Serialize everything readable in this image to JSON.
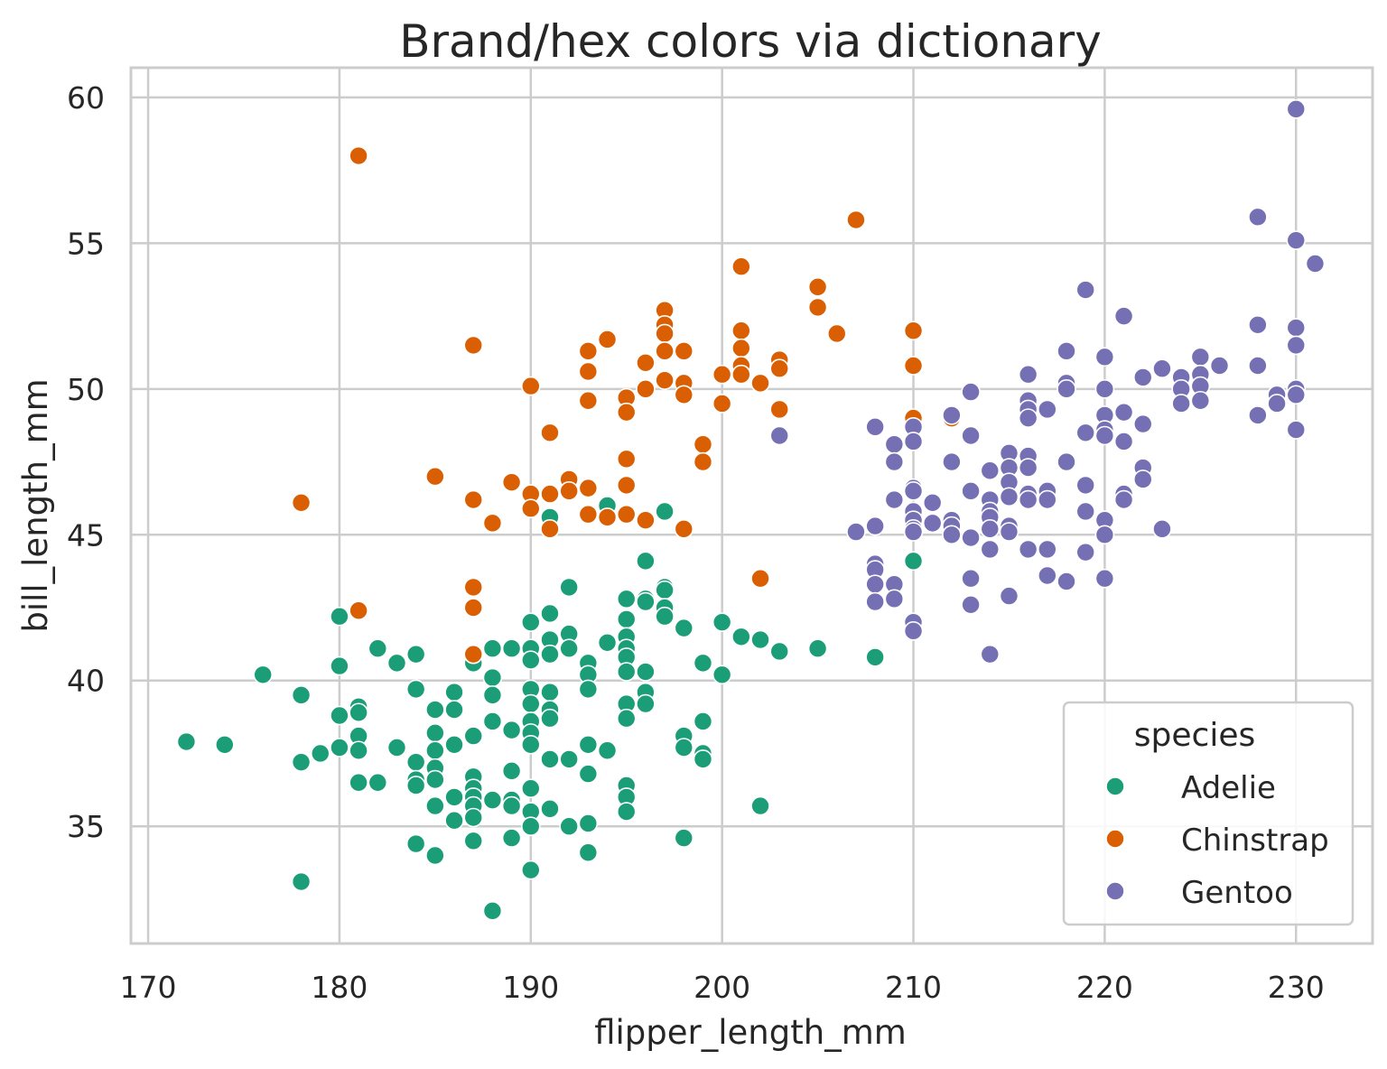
{
  "chart_data": {
    "type": "scatter",
    "title": "Brand/hex colors via dictionary",
    "xlabel": "flipper_length_mm",
    "ylabel": "bill_length_mm",
    "xlim": [
      169.1,
      234
    ],
    "ylim": [
      30.98,
      61.02
    ],
    "xticks": [
      170,
      180,
      190,
      200,
      210,
      220,
      230
    ],
    "yticks": [
      35,
      40,
      45,
      50,
      55,
      60
    ],
    "grid": true,
    "legend": {
      "title": "species",
      "placement": "bottom-right"
    },
    "series": [
      {
        "name": "Adelie",
        "color": "#1b9e77",
        "points": [
          [
            172,
            37.9
          ],
          [
            174,
            37.8
          ],
          [
            176,
            40.2
          ],
          [
            178,
            39.5
          ],
          [
            178,
            37.2
          ],
          [
            178,
            33.1
          ],
          [
            179,
            37.5
          ],
          [
            180,
            42.2
          ],
          [
            180,
            40.5
          ],
          [
            180,
            38.8
          ],
          [
            180,
            37.7
          ],
          [
            181,
            39.1
          ],
          [
            181,
            38.9
          ],
          [
            181,
            38.1
          ],
          [
            181,
            37.6
          ],
          [
            181,
            36.5
          ],
          [
            182,
            41.1
          ],
          [
            182,
            36.5
          ],
          [
            183,
            40.6
          ],
          [
            183,
            37.7
          ],
          [
            184,
            40.9
          ],
          [
            184,
            39.7
          ],
          [
            184,
            37.2
          ],
          [
            184,
            36.6
          ],
          [
            184,
            36.4
          ],
          [
            184,
            34.4
          ],
          [
            185,
            39.0
          ],
          [
            185,
            38.2
          ],
          [
            185,
            37.6
          ],
          [
            185,
            37.0
          ],
          [
            185,
            36.6
          ],
          [
            185,
            35.7
          ],
          [
            185,
            34.0
          ],
          [
            186,
            39.6
          ],
          [
            186,
            39.0
          ],
          [
            186,
            37.8
          ],
          [
            186,
            36.0
          ],
          [
            186,
            35.2
          ],
          [
            187,
            40.6
          ],
          [
            187,
            38.1
          ],
          [
            187,
            36.7
          ],
          [
            187,
            36.3
          ],
          [
            187,
            36.0
          ],
          [
            187,
            35.7
          ],
          [
            187,
            35.3
          ],
          [
            187,
            34.5
          ],
          [
            188,
            41.1
          ],
          [
            188,
            40.1
          ],
          [
            188,
            39.5
          ],
          [
            188,
            38.6
          ],
          [
            188,
            35.9
          ],
          [
            188,
            32.1
          ],
          [
            189,
            41.1
          ],
          [
            189,
            38.3
          ],
          [
            189,
            36.9
          ],
          [
            189,
            35.9
          ],
          [
            189,
            35.7
          ],
          [
            189,
            34.6
          ],
          [
            190,
            42.0
          ],
          [
            190,
            41.1
          ],
          [
            190,
            40.7
          ],
          [
            190,
            39.7
          ],
          [
            190,
            39.2
          ],
          [
            190,
            38.6
          ],
          [
            190,
            38.2
          ],
          [
            190,
            37.8
          ],
          [
            190,
            36.3
          ],
          [
            190,
            35.5
          ],
          [
            190,
            35.0
          ],
          [
            190,
            33.5
          ],
          [
            191,
            45.6
          ],
          [
            191,
            42.3
          ],
          [
            191,
            41.4
          ],
          [
            191,
            40.9
          ],
          [
            191,
            39.6
          ],
          [
            191,
            39.0
          ],
          [
            191,
            38.7
          ],
          [
            191,
            37.3
          ],
          [
            191,
            35.6
          ],
          [
            192,
            43.2
          ],
          [
            192,
            41.6
          ],
          [
            192,
            41.1
          ],
          [
            192,
            37.3
          ],
          [
            192,
            35.0
          ],
          [
            193,
            40.6
          ],
          [
            193,
            40.2
          ],
          [
            193,
            39.7
          ],
          [
            193,
            37.8
          ],
          [
            193,
            36.8
          ],
          [
            193,
            35.1
          ],
          [
            193,
            34.1
          ],
          [
            194,
            46.0
          ],
          [
            194,
            41.3
          ],
          [
            194,
            37.6
          ],
          [
            195,
            42.8
          ],
          [
            195,
            42.1
          ],
          [
            195,
            41.5
          ],
          [
            195,
            41.1
          ],
          [
            195,
            40.8
          ],
          [
            195,
            40.3
          ],
          [
            195,
            39.2
          ],
          [
            195,
            38.7
          ],
          [
            195,
            36.4
          ],
          [
            195,
            36.0
          ],
          [
            195,
            35.5
          ],
          [
            196,
            44.1
          ],
          [
            196,
            42.8
          ],
          [
            196,
            42.7
          ],
          [
            196,
            40.3
          ],
          [
            196,
            39.6
          ],
          [
            196,
            39.2
          ],
          [
            197,
            45.8
          ],
          [
            197,
            43.2
          ],
          [
            197,
            43.1
          ],
          [
            197,
            42.5
          ],
          [
            197,
            42.2
          ],
          [
            198,
            41.8
          ],
          [
            198,
            38.1
          ],
          [
            198,
            37.7
          ],
          [
            198,
            34.6
          ],
          [
            199,
            40.6
          ],
          [
            199,
            38.6
          ],
          [
            199,
            37.5
          ],
          [
            199,
            37.3
          ],
          [
            200,
            42.0
          ],
          [
            200,
            40.2
          ],
          [
            201,
            41.5
          ],
          [
            202,
            41.4
          ],
          [
            202,
            35.7
          ],
          [
            203,
            41.0
          ],
          [
            205,
            41.1
          ],
          [
            208,
            40.8
          ],
          [
            210,
            44.1
          ]
        ]
      },
      {
        "name": "Chinstrap",
        "color": "#d95f02",
        "points": [
          [
            178,
            46.1
          ],
          [
            181,
            58.0
          ],
          [
            181,
            42.4
          ],
          [
            185,
            47.0
          ],
          [
            187,
            51.5
          ],
          [
            187,
            46.2
          ],
          [
            187,
            43.2
          ],
          [
            187,
            42.5
          ],
          [
            187,
            40.9
          ],
          [
            188,
            45.4
          ],
          [
            189,
            46.8
          ],
          [
            190,
            50.1
          ],
          [
            190,
            46.4
          ],
          [
            190,
            45.9
          ],
          [
            191,
            48.5
          ],
          [
            191,
            46.4
          ],
          [
            191,
            45.2
          ],
          [
            192,
            46.9
          ],
          [
            192,
            46.5
          ],
          [
            193,
            51.3
          ],
          [
            193,
            50.6
          ],
          [
            193,
            49.6
          ],
          [
            193,
            46.6
          ],
          [
            193,
            45.7
          ],
          [
            194,
            51.7
          ],
          [
            194,
            45.6
          ],
          [
            195,
            49.7
          ],
          [
            195,
            49.2
          ],
          [
            195,
            47.6
          ],
          [
            195,
            46.7
          ],
          [
            195,
            45.7
          ],
          [
            196,
            50.9
          ],
          [
            196,
            50.0
          ],
          [
            196,
            45.5
          ],
          [
            197,
            52.7
          ],
          [
            197,
            52.2
          ],
          [
            197,
            51.9
          ],
          [
            197,
            51.3
          ],
          [
            197,
            50.3
          ],
          [
            198,
            51.3
          ],
          [
            198,
            50.2
          ],
          [
            198,
            49.8
          ],
          [
            198,
            45.2
          ],
          [
            199,
            48.1
          ],
          [
            199,
            47.5
          ],
          [
            200,
            50.5
          ],
          [
            200,
            49.5
          ],
          [
            201,
            54.2
          ],
          [
            201,
            52.0
          ],
          [
            201,
            51.4
          ],
          [
            201,
            50.8
          ],
          [
            201,
            50.5
          ],
          [
            202,
            50.2
          ],
          [
            202,
            43.5
          ],
          [
            203,
            51.0
          ],
          [
            203,
            50.7
          ],
          [
            203,
            49.3
          ],
          [
            205,
            53.5
          ],
          [
            205,
            52.8
          ],
          [
            206,
            51.9
          ],
          [
            207,
            55.8
          ],
          [
            210,
            52.0
          ],
          [
            210,
            50.8
          ],
          [
            210,
            49.0
          ],
          [
            212,
            49.0
          ]
        ]
      },
      {
        "name": "Gentoo",
        "color": "#7570b3",
        "points": [
          [
            203,
            48.4
          ],
          [
            207,
            45.1
          ],
          [
            208,
            48.7
          ],
          [
            208,
            45.3
          ],
          [
            208,
            44.0
          ],
          [
            208,
            43.8
          ],
          [
            208,
            43.3
          ],
          [
            208,
            42.7
          ],
          [
            209,
            48.1
          ],
          [
            209,
            47.5
          ],
          [
            209,
            46.2
          ],
          [
            209,
            43.3
          ],
          [
            209,
            42.8
          ],
          [
            210,
            48.7
          ],
          [
            210,
            48.2
          ],
          [
            210,
            46.6
          ],
          [
            210,
            46.5
          ],
          [
            210,
            45.8
          ],
          [
            210,
            45.5
          ],
          [
            210,
            45.2
          ],
          [
            210,
            45.1
          ],
          [
            210,
            42.0
          ],
          [
            210,
            41.7
          ],
          [
            211,
            46.1
          ],
          [
            211,
            45.4
          ],
          [
            212,
            49.1
          ],
          [
            212,
            47.5
          ],
          [
            212,
            45.5
          ],
          [
            212,
            45.3
          ],
          [
            212,
            45.0
          ],
          [
            213,
            49.9
          ],
          [
            213,
            48.4
          ],
          [
            213,
            46.5
          ],
          [
            213,
            44.9
          ],
          [
            213,
            43.5
          ],
          [
            213,
            42.6
          ],
          [
            214,
            47.2
          ],
          [
            214,
            46.2
          ],
          [
            214,
            45.8
          ],
          [
            214,
            45.6
          ],
          [
            214,
            45.2
          ],
          [
            214,
            44.5
          ],
          [
            214,
            40.9
          ],
          [
            215,
            47.8
          ],
          [
            215,
            47.3
          ],
          [
            215,
            46.8
          ],
          [
            215,
            46.3
          ],
          [
            215,
            45.3
          ],
          [
            215,
            45.1
          ],
          [
            215,
            42.9
          ],
          [
            216,
            50.5
          ],
          [
            216,
            49.6
          ],
          [
            216,
            49.3
          ],
          [
            216,
            49.0
          ],
          [
            216,
            47.7
          ],
          [
            216,
            47.3
          ],
          [
            216,
            46.4
          ],
          [
            216,
            46.2
          ],
          [
            216,
            44.5
          ],
          [
            217,
            49.3
          ],
          [
            217,
            46.5
          ],
          [
            217,
            46.2
          ],
          [
            217,
            44.5
          ],
          [
            217,
            43.6
          ],
          [
            218,
            51.3
          ],
          [
            218,
            50.2
          ],
          [
            218,
            50.0
          ],
          [
            218,
            47.5
          ],
          [
            218,
            43.4
          ],
          [
            219,
            53.4
          ],
          [
            219,
            48.5
          ],
          [
            219,
            46.7
          ],
          [
            219,
            45.8
          ],
          [
            219,
            44.4
          ],
          [
            220,
            51.1
          ],
          [
            220,
            50.0
          ],
          [
            220,
            49.1
          ],
          [
            220,
            48.6
          ],
          [
            220,
            48.4
          ],
          [
            220,
            45.5
          ],
          [
            220,
            45.0
          ],
          [
            220,
            43.5
          ],
          [
            221,
            52.5
          ],
          [
            221,
            49.2
          ],
          [
            221,
            48.2
          ],
          [
            221,
            46.4
          ],
          [
            221,
            46.2
          ],
          [
            222,
            50.4
          ],
          [
            222,
            48.8
          ],
          [
            222,
            47.3
          ],
          [
            222,
            46.9
          ],
          [
            223,
            50.7
          ],
          [
            223,
            45.2
          ],
          [
            224,
            50.4
          ],
          [
            224,
            50.0
          ],
          [
            224,
            49.5
          ],
          [
            225,
            51.1
          ],
          [
            225,
            50.5
          ],
          [
            225,
            50.1
          ],
          [
            225,
            49.6
          ],
          [
            226,
            50.8
          ],
          [
            228,
            55.9
          ],
          [
            228,
            52.2
          ],
          [
            228,
            50.8
          ],
          [
            228,
            49.1
          ],
          [
            229,
            49.8
          ],
          [
            229,
            49.5
          ],
          [
            230,
            59.6
          ],
          [
            230,
            55.1
          ],
          [
            230,
            52.1
          ],
          [
            230,
            51.5
          ],
          [
            230,
            50.0
          ],
          [
            230,
            49.8
          ],
          [
            230,
            48.6
          ],
          [
            231,
            54.3
          ]
        ]
      }
    ]
  }
}
